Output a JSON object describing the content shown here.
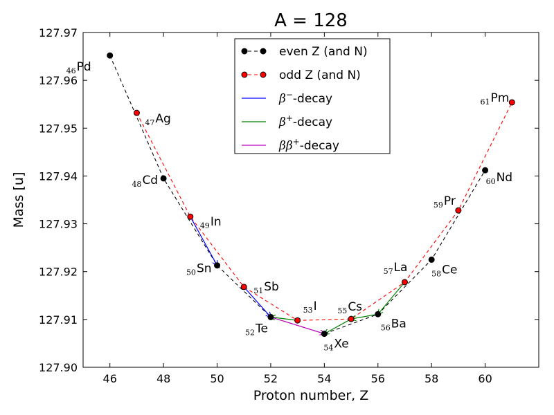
{
  "chart_data": {
    "type": "scatter",
    "title": "A = 128",
    "xlabel": "Proton number, Z",
    "ylabel": "Mass [u]",
    "xlim": [
      45,
      62
    ],
    "ylim": [
      127.9,
      127.97
    ],
    "xticks": [
      46,
      48,
      50,
      52,
      54,
      56,
      58,
      60
    ],
    "xtick_labels": [
      "46",
      "48",
      "50",
      "52",
      "54",
      "56",
      "58",
      "60"
    ],
    "yticks": [
      127.9,
      127.91,
      127.92,
      127.93,
      127.94,
      127.95,
      127.96,
      127.97
    ],
    "ytick_labels": [
      "127.90",
      "127.91",
      "127.92",
      "127.93",
      "127.94",
      "127.95",
      "127.96",
      "127.97"
    ],
    "grid": false,
    "legend_position": "top-center",
    "series": [
      {
        "name": "even Z (and N)",
        "color": "#000000",
        "line_style": "dashed",
        "points": [
          {
            "z": 46,
            "mass": 127.9652,
            "symbol": "Pd"
          },
          {
            "z": 48,
            "mass": 127.9395,
            "symbol": "Cd"
          },
          {
            "z": 50,
            "mass": 127.9213,
            "symbol": "Sn"
          },
          {
            "z": 52,
            "mass": 127.9105,
            "symbol": "Te"
          },
          {
            "z": 54,
            "mass": 127.907,
            "symbol": "Xe"
          },
          {
            "z": 56,
            "mass": 127.9111,
            "symbol": "Ba"
          },
          {
            "z": 58,
            "mass": 127.9225,
            "symbol": "Ce"
          },
          {
            "z": 60,
            "mass": 127.9412,
            "symbol": "Nd"
          }
        ]
      },
      {
        "name": "odd Z (and N)",
        "color": "#ff0000",
        "line_style": "dashed",
        "points": [
          {
            "z": 47,
            "mass": 127.9532,
            "symbol": "Ag"
          },
          {
            "z": 49,
            "mass": 127.9315,
            "symbol": "In"
          },
          {
            "z": 51,
            "mass": 127.9168,
            "symbol": "Sb"
          },
          {
            "z": 53,
            "mass": 127.9098,
            "symbol": "I"
          },
          {
            "z": 55,
            "mass": 127.9101,
            "symbol": "Cs"
          },
          {
            "z": 57,
            "mass": 127.9178,
            "symbol": "La"
          },
          {
            "z": 59,
            "mass": 127.9328,
            "symbol": "Pr"
          },
          {
            "z": 61,
            "mass": 127.9554,
            "symbol": "Pm"
          }
        ]
      }
    ],
    "decays": [
      {
        "type": "beta-minus",
        "from": 49,
        "to": 50
      },
      {
        "type": "beta-minus",
        "from": 51,
        "to": 52
      },
      {
        "type": "beta-plus",
        "from": 53,
        "to": 52
      },
      {
        "type": "beta-plus",
        "from": 55,
        "to": 54
      },
      {
        "type": "beta-plus",
        "from": 56,
        "to": 55
      },
      {
        "type": "beta-plus",
        "from": 57,
        "to": 56
      },
      {
        "type": "double-beta-plus",
        "from": 52,
        "to": 54
      }
    ],
    "decay_legend": [
      {
        "key": "beta-minus",
        "name_base": "β",
        "name_sup": "−",
        "name_suffix": "-decay",
        "color": "#0000ff"
      },
      {
        "key": "beta-plus",
        "name_base": "β",
        "name_sup": "+",
        "name_suffix": "-decay",
        "color": "#008000"
      },
      {
        "key": "double-beta-plus",
        "name_base": "ββ",
        "name_sup": "+",
        "name_suffix": "-decay",
        "color": "#bf00bf"
      }
    ]
  }
}
